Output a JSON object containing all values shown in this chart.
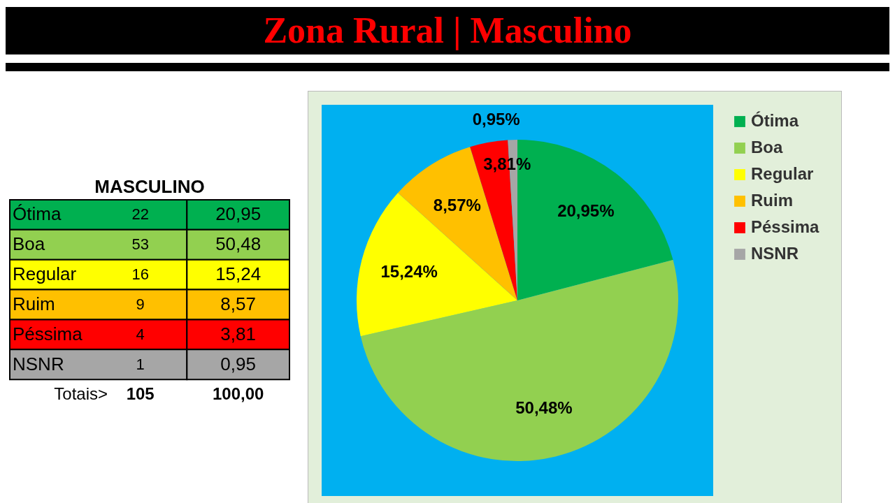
{
  "chart_data": [
    {
      "type": "pie",
      "title": "Zona Rural | Masculino",
      "categories": [
        "Ótima",
        "Boa",
        "Regular",
        "Ruim",
        "Péssima",
        "NSNR"
      ],
      "values": [
        20.95,
        50.48,
        15.24,
        8.57,
        3.81,
        0.95
      ],
      "colors": [
        "#00b050",
        "#92d050",
        "#ffff00",
        "#ffc000",
        "#ff0000",
        "#a6a6a6"
      ],
      "value_labels": [
        "20,95%",
        "50,48%",
        "15,24%",
        "8,57%",
        "3,81%",
        "0,95%"
      ],
      "legend": "right"
    },
    {
      "type": "other",
      "title": "MASCULINO",
      "categories": [
        "Ótima",
        "Boa",
        "Regular",
        "Ruim",
        "Péssima",
        "NSNR"
      ],
      "data_labels": true,
      "series": [
        {
          "values": [
            22,
            53,
            16,
            9,
            4,
            1
          ],
          "colors": [
            "#00b050",
            "#92d050",
            "#ffff00",
            "#ffc000",
            "#ff0000",
            "#a6a6a6"
          ]
        },
        {
          "values": [
            20.95,
            50.48,
            15.24,
            8.57,
            3.81,
            0.95
          ],
          "value_labels": [
            "20,95",
            "50,48",
            "15,24",
            "8,57",
            "3,81",
            "0,95"
          ],
          "colors": [
            "#00b050",
            "#92d050",
            "#ffff00",
            "#ffc000",
            "#ff0000",
            "#a6a6a6"
          ]
        }
      ],
      "totals": [
        "105",
        "100,00"
      ],
      "annotations": [
        "Totais>"
      ]
    }
  ]
}
